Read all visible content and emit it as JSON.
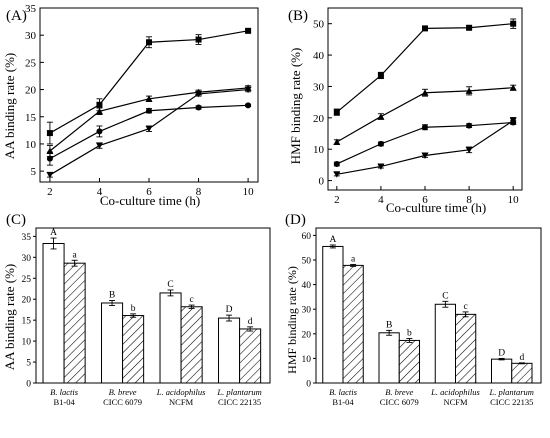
{
  "colors": {
    "ink": "#000000",
    "background": "#ffffff"
  },
  "chart_data": [
    {
      "type": "line",
      "panel_label": "(A)",
      "xlabel": "Co-culture time (h)",
      "ylabel": "AA binding rate (%)",
      "xlim": [
        1.6,
        10.4
      ],
      "ylim": [
        3,
        35
      ],
      "xticks": [
        2,
        4,
        6,
        8,
        10
      ],
      "yticks": [
        5,
        10,
        15,
        20,
        25,
        30,
        35
      ],
      "x": [
        2,
        4,
        6,
        8,
        10
      ],
      "series": [
        {
          "marker": "square",
          "values": [
            12.0,
            17.2,
            28.7,
            29.2,
            30.8
          ],
          "errors": [
            2.0,
            1.1,
            1.0,
            0.9,
            0.3
          ]
        },
        {
          "marker": "triangle-up",
          "values": [
            8.7,
            16.0,
            18.3,
            19.5,
            20.3
          ],
          "errors": [
            1.0,
            0.6,
            0.5,
            0.4,
            0.4
          ]
        },
        {
          "marker": "circle",
          "values": [
            7.3,
            12.3,
            16.1,
            16.7,
            17.1
          ],
          "errors": [
            1.2,
            1.0,
            0.4,
            0.3,
            0.2
          ]
        },
        {
          "marker": "triangle-down",
          "values": [
            4.3,
            9.7,
            12.8,
            19.2,
            20.0
          ],
          "errors": [
            0.4,
            0.5,
            0.5,
            0.4,
            0.4
          ]
        }
      ]
    },
    {
      "type": "line",
      "panel_label": "(B)",
      "xlabel": "Co-culture time (h)",
      "ylabel": "HMF binding rate (%)",
      "xlim": [
        1.6,
        10.4
      ],
      "ylim": [
        -3,
        55
      ],
      "xticks": [
        2,
        4,
        6,
        8,
        10
      ],
      "yticks": [
        0,
        10,
        20,
        30,
        40,
        50
      ],
      "x": [
        2,
        4,
        6,
        8,
        10
      ],
      "series": [
        {
          "marker": "square",
          "values": [
            21.8,
            33.5,
            48.5,
            48.7,
            50.0
          ],
          "errors": [
            1.0,
            1.0,
            0.5,
            0.6,
            1.5
          ]
        },
        {
          "marker": "triangle-up",
          "values": [
            12.3,
            20.4,
            28.0,
            28.6,
            29.6
          ],
          "errors": [
            0.7,
            0.9,
            1.1,
            1.3,
            0.8
          ]
        },
        {
          "marker": "circle",
          "values": [
            5.3,
            11.7,
            17.0,
            17.5,
            18.5
          ],
          "errors": [
            0.6,
            0.6,
            0.8,
            0.6,
            0.6
          ]
        },
        {
          "marker": "triangle-down",
          "values": [
            2.0,
            4.5,
            8.0,
            9.8,
            19.1
          ],
          "errors": [
            0.5,
            0.5,
            0.6,
            0.9,
            1.0
          ]
        }
      ]
    },
    {
      "type": "bar",
      "panel_label": "(C)",
      "ylabel": "AA binding rate (%)",
      "ylim": [
        0,
        37
      ],
      "yticks": [
        0,
        5,
        10,
        15,
        20,
        25,
        30,
        35
      ],
      "categories": [
        {
          "name": "B. lactis",
          "strain": "B1-04"
        },
        {
          "name": "B. breve",
          "strain": "CICC 6079"
        },
        {
          "name": "L. acidophilus",
          "strain": "NCFM"
        },
        {
          "name": "L. plantarum",
          "strain": "CICC 22135"
        }
      ],
      "series": [
        {
          "fill": "open",
          "values": [
            33.3,
            19.1,
            21.5,
            15.5
          ],
          "errors": [
            1.3,
            0.6,
            0.7,
            0.7
          ],
          "letters": [
            "A",
            "B",
            "C",
            "D"
          ]
        },
        {
          "fill": "hatched",
          "values": [
            28.6,
            16.1,
            18.2,
            12.9
          ],
          "errors": [
            0.7,
            0.4,
            0.4,
            0.5
          ],
          "letters": [
            "a",
            "b",
            "c",
            "d"
          ]
        }
      ]
    },
    {
      "type": "bar",
      "panel_label": "(D)",
      "ylabel": "HMF binding rate (%)",
      "ylim": [
        0,
        63
      ],
      "yticks": [
        0,
        10,
        20,
        30,
        40,
        50,
        60
      ],
      "categories": [
        {
          "name": "B. lactis",
          "strain": "B1-04"
        },
        {
          "name": "B. breve",
          "strain": "CICC 6079"
        },
        {
          "name": "L. acidophilus",
          "strain": "NCFM"
        },
        {
          "name": "L. plantarum",
          "strain": "CICC 22135"
        }
      ],
      "series": [
        {
          "fill": "open",
          "values": [
            55.5,
            20.4,
            32.0,
            9.7
          ],
          "errors": [
            0.6,
            1.0,
            1.2,
            0.3
          ],
          "letters": [
            "A",
            "B",
            "C",
            "D"
          ]
        },
        {
          "fill": "hatched",
          "values": [
            47.8,
            17.3,
            27.9,
            8.0
          ],
          "errors": [
            0.4,
            0.8,
            1.0,
            0.2
          ],
          "letters": [
            "a",
            "b",
            "c",
            "d"
          ]
        }
      ]
    }
  ]
}
